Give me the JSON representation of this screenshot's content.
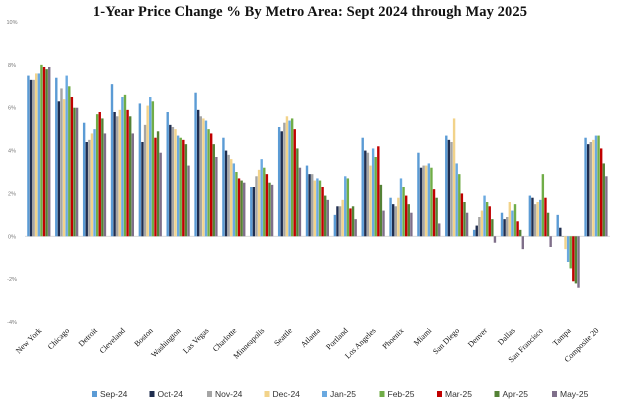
{
  "chart_data": {
    "type": "bar",
    "title": "1-Year Price Change % By Metro Area: Sept 2024 through May 2025",
    "xlabel": "",
    "ylabel": "",
    "ylim": [
      -4,
      10
    ],
    "yticks": [
      -4,
      -2,
      0,
      2,
      4,
      6,
      8,
      10
    ],
    "ytick_labels": [
      "-4%",
      "-2%",
      "0%",
      "2%",
      "4%",
      "6%",
      "8%",
      "10%"
    ],
    "grid": false,
    "legend_position": "bottom",
    "categories": [
      "New York",
      "Chicago",
      "Detroit",
      "Cleveland",
      "Boston",
      "Washington",
      "Las Vegas",
      "Charlotte",
      "Minneapolis",
      "Seattle",
      "Atlanta",
      "Portland",
      "Los Angeles",
      "Phoenix",
      "Miami",
      "San Diego",
      "Denver",
      "Dallas",
      "San Francisco",
      "Tampa",
      "Composite 20"
    ],
    "series": [
      {
        "name": "Sep-24",
        "color": "#5b9bd5",
        "values": [
          7.5,
          7.4,
          5.3,
          7.1,
          6.2,
          5.8,
          6.7,
          4.6,
          2.3,
          5.1,
          3.3,
          1.0,
          4.6,
          1.8,
          3.9,
          4.7,
          0.3,
          1.1,
          1.9,
          1.0,
          4.6
        ]
      },
      {
        "name": "Oct-24",
        "color": "#1f2d4e",
        "values": [
          7.3,
          6.3,
          4.4,
          5.8,
          4.4,
          5.2,
          5.9,
          4.0,
          2.3,
          4.9,
          2.9,
          1.4,
          4.0,
          1.5,
          3.2,
          4.5,
          0.5,
          0.8,
          1.8,
          0.4,
          4.3
        ]
      },
      {
        "name": "Nov-24",
        "color": "#a5a5a5",
        "values": [
          7.3,
          6.9,
          4.5,
          5.6,
          5.2,
          5.1,
          5.6,
          3.8,
          2.8,
          5.3,
          2.9,
          1.4,
          3.9,
          1.4,
          3.3,
          4.4,
          0.9,
          0.9,
          1.5,
          0.0,
          4.4
        ]
      },
      {
        "name": "Dec-24",
        "color": "#f2d38a",
        "values": [
          7.6,
          6.4,
          4.8,
          5.9,
          6.1,
          5.0,
          5.5,
          3.6,
          3.1,
          5.6,
          2.6,
          1.7,
          3.3,
          1.8,
          3.3,
          5.5,
          1.2,
          1.6,
          1.6,
          -0.6,
          4.5
        ]
      },
      {
        "name": "Jan-25",
        "color": "#6aa9e0",
        "values": [
          7.6,
          7.5,
          5.0,
          6.5,
          6.5,
          4.7,
          5.4,
          3.4,
          3.6,
          5.4,
          2.7,
          2.8,
          4.1,
          2.7,
          3.4,
          3.4,
          1.9,
          1.2,
          1.7,
          -1.2,
          4.7
        ]
      },
      {
        "name": "Feb-25",
        "color": "#70ad47",
        "values": [
          8.0,
          7.0,
          5.7,
          6.6,
          6.3,
          4.6,
          5.0,
          3.0,
          3.2,
          5.5,
          2.6,
          2.7,
          3.7,
          2.3,
          3.2,
          2.9,
          1.6,
          1.5,
          2.9,
          -1.5,
          4.7
        ]
      },
      {
        "name": "Mar-25",
        "color": "#c00000",
        "values": [
          7.9,
          6.5,
          5.8,
          5.9,
          4.6,
          4.5,
          4.8,
          2.7,
          2.9,
          5.0,
          2.3,
          1.3,
          4.2,
          1.9,
          2.2,
          2.0,
          1.4,
          0.7,
          1.8,
          -2.1,
          4.1
        ]
      },
      {
        "name": "Apr-25",
        "color": "#548235",
        "values": [
          7.8,
          6.0,
          5.5,
          5.6,
          4.9,
          4.3,
          4.3,
          2.6,
          2.5,
          4.1,
          1.9,
          1.4,
          2.4,
          1.5,
          1.8,
          1.6,
          0.8,
          0.3,
          1.1,
          -2.2,
          3.4
        ]
      },
      {
        "name": "May-25",
        "color": "#7f6f8a",
        "values": [
          7.9,
          6.0,
          4.8,
          4.8,
          3.9,
          3.3,
          3.7,
          2.5,
          2.4,
          3.2,
          1.7,
          0.8,
          1.2,
          1.1,
          0.6,
          1.1,
          -0.3,
          -0.6,
          -0.5,
          -2.4,
          2.8
        ]
      }
    ]
  }
}
